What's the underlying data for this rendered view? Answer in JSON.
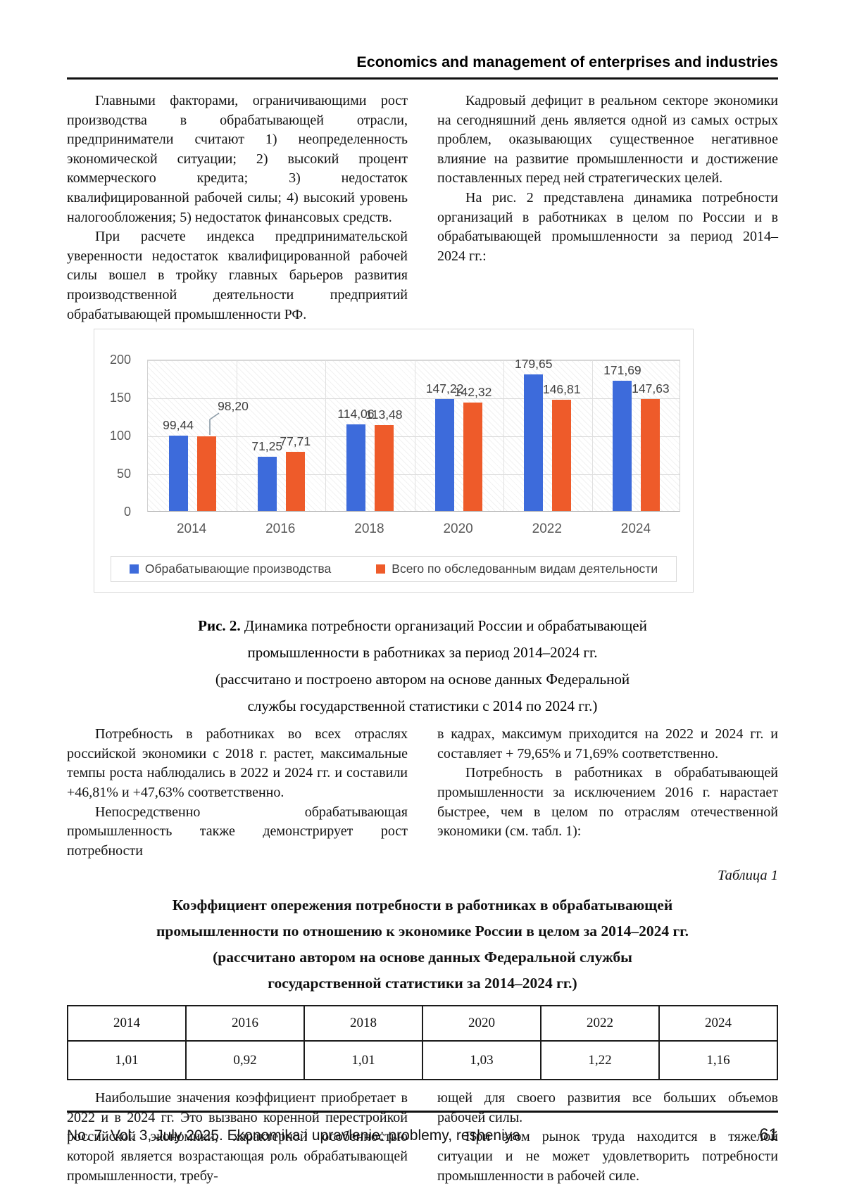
{
  "header": {
    "title": "Economics and management of enterprises and industries"
  },
  "body": {
    "top_left": [
      "Главными факторами, ограничивающими рост производства в обрабатывающей отрасли, предприниматели считают 1) неопределенность экономической ситуации; 2) высокий процент коммерческого кредита; 3) недостаток квалифицированной рабочей силы; 4) высокий уровень налогообложения; 5) недостаток финансовых средств.",
      "При расчете индекса предпринимательской уверенности недостаток квалифицированной рабочей силы вошел в тройку главных барьеров развития производственной деятельности предприятий обрабатывающей промышленности РФ."
    ],
    "top_right": [
      "Кадровый дефицит в реальном секторе экономики на сегодняшний день является одной из самых острых проблем, оказывающих существенное негативное влияние на развитие промышленности и достижение поставленных перед ней стратегических целей.",
      "На рис. 2 представлена динамика потребности организаций в работниках в целом по России и в обрабатывающей промышленности за период 2014–2024 гг.:"
    ],
    "mid_left": [
      "Потребность в работниках во всех отраслях российской экономики с 2018 г. растет, максимальные темпы роста наблюдались в 2022 и 2024 гг. и составили +46,81% и +47,63% соответственно.",
      "Непосредственно обрабатывающая промышленность также демонстрирует рост потребности"
    ],
    "mid_right": [
      "в кадрах, максимум приходится на 2022 и 2024 гг. и составляет + 79,65% и 71,69% соответственно.",
      "Потребность в работниках в обрабатывающей промышленности за исключением 2016 г. нарастает быстрее, чем в целом по отраслям отечественной экономики (см. табл. 1):"
    ],
    "bottom_left": [
      "Наибольшие значения коэффициент приобретает в 2022 и в 2024 гг. Это вызвано коренной перестройкой российской экономики, характерной особенностью которой является возрастающая роль обрабатывающей промышленности, требу-"
    ],
    "bottom_right": [
      "ющей для своего развития все больших объемов рабочей силы.",
      "При этом рынок труда находится в тяжелой ситуации и не может удовлетворить потребности промышленности в рабочей силе."
    ]
  },
  "chart_data": {
    "type": "bar",
    "title": "",
    "categories": [
      "2014",
      "2016",
      "2018",
      "2020",
      "2022",
      "2024"
    ],
    "series": [
      {
        "name": "Обрабатывающие производства",
        "color": "#3D6BDB",
        "values": [
          99.44,
          71.25,
          114.06,
          147.22,
          179.65,
          171.69
        ],
        "labels": [
          "99,44",
          "71,25",
          "114,06",
          "147,22",
          "179,65",
          "171,69"
        ]
      },
      {
        "name": "Всего по обследованным видам деятельности",
        "color": "#EE5B2A",
        "values": [
          98.2,
          77.71,
          113.48,
          142.32,
          146.81,
          147.63
        ],
        "labels": [
          "98,20",
          "77,71",
          "113,48",
          "142,32",
          "146,81",
          "147,63"
        ]
      }
    ],
    "ylim": [
      0,
      200
    ],
    "yticks": [
      200,
      150,
      100,
      50,
      0
    ],
    "grid": true,
    "legend_position": "bottom"
  },
  "figure_caption": {
    "label": "Рис. 2.",
    "lines": [
      "Динамика потребности организаций России и обрабатывающей",
      "промышленности в работниках за период 2014–2024 гг.",
      "(рассчитано и построено автором на основе данных Федеральной",
      "службы государственной статистики с 2014 по 2024 гг.)"
    ]
  },
  "table_section": {
    "label": "Таблица 1",
    "title_lines": [
      "Коэффициент опережения потребности в работниках в обрабатывающей",
      "промышленности по отношению к экономике России в целом за 2014–2024 гг.",
      "(рассчитано автором на основе данных Федеральной службы",
      "государственной статистики за 2014–2024 гг.)"
    ],
    "years": [
      "2014",
      "2016",
      "2018",
      "2020",
      "2022",
      "2024"
    ],
    "values": [
      "1,01",
      "0,92",
      "1,01",
      "1,03",
      "1,22",
      "1,16"
    ]
  },
  "footer": {
    "info": "No. 7. Vol. 3, July 2025. Ekonomika i upravlenie: problemy, resheniya",
    "page_number": "61"
  }
}
